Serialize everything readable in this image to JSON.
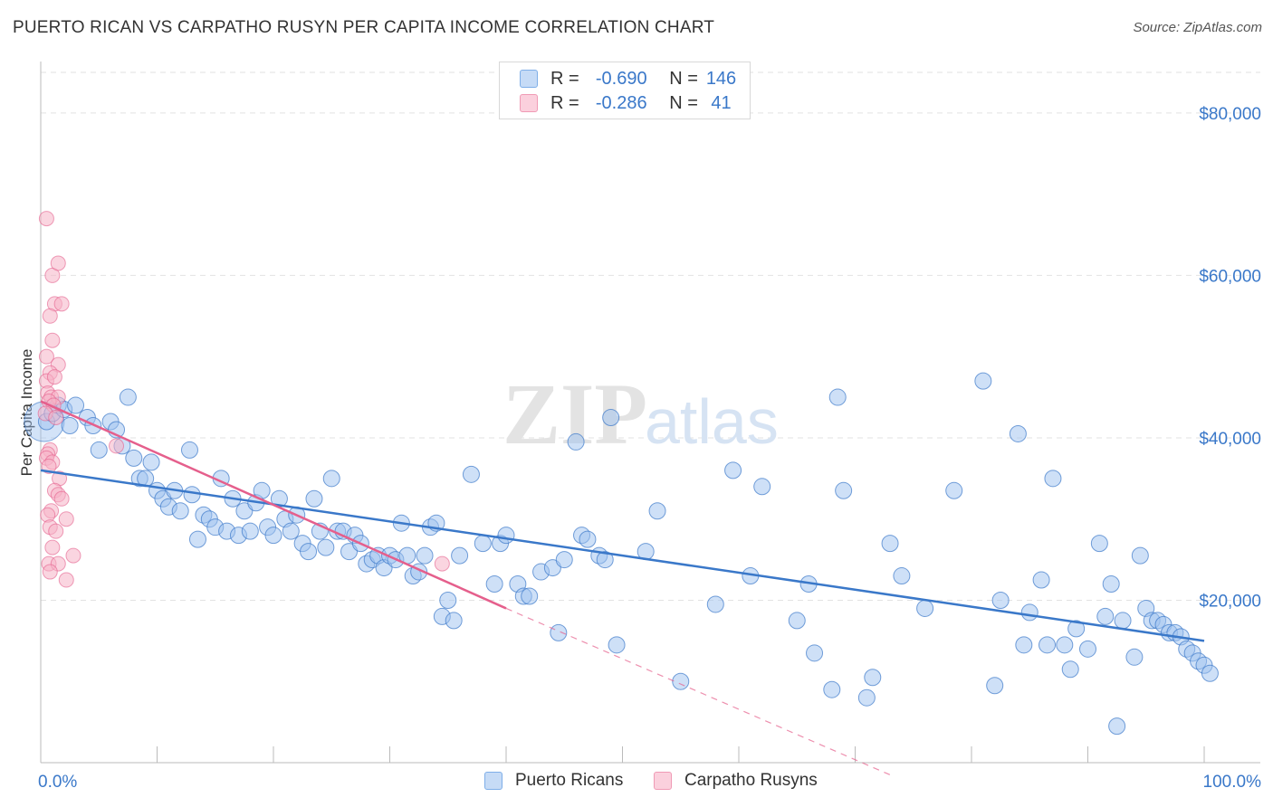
{
  "title": "PUERTO RICAN VS CARPATHO RUSYN PER CAPITA INCOME CORRELATION CHART",
  "source": "Source: ZipAtlas.com",
  "watermark": {
    "zip": "ZIP",
    "atlas": "atlas"
  },
  "legend": {
    "rows": [
      {
        "r_label": "R =",
        "r_value": "-0.690",
        "n_label": "N =",
        "n_value": "146",
        "color": "#9ec1ef"
      },
      {
        "r_label": "R =",
        "r_value": "-0.286",
        "n_label": "N =",
        "n_value": "41",
        "color": "#f5b3c7"
      }
    ]
  },
  "bottom_legend": [
    {
      "label": "Puerto Ricans",
      "color": "#9ec1ef"
    },
    {
      "label": "Carpatho Rusyns",
      "color": "#f5b3c7"
    }
  ],
  "chart_data": {
    "type": "scatter",
    "title": "PUERTO RICAN VS CARPATHO RUSYN PER CAPITA INCOME CORRELATION CHART",
    "xlabel": "",
    "ylabel": "Per Capita Income",
    "xlim": [
      0,
      100
    ],
    "ylim": [
      0,
      85000
    ],
    "x_tick_labels": [
      "0.0%",
      "100.0%"
    ],
    "y_ticks": [
      20000,
      40000,
      60000,
      80000
    ],
    "y_tick_labels": [
      "$20,000",
      "$40,000",
      "$60,000",
      "$80,000"
    ],
    "grid": "horizontal dashed",
    "legend_position": "top-center",
    "series": [
      {
        "name": "Puerto Ricans",
        "color": "#3a78c9",
        "fill": "#9ec1ef",
        "r": -0.69,
        "n": 146,
        "trend": {
          "x": [
            0,
            100
          ],
          "y": [
            36000,
            15000
          ]
        },
        "points": [
          [
            0.5,
            42000
          ],
          [
            1,
            43000
          ],
          [
            1.5,
            44000
          ],
          [
            2,
            43500
          ],
          [
            2.5,
            41500
          ],
          [
            3,
            44000
          ],
          [
            4,
            42500
          ],
          [
            4.5,
            41500
          ],
          [
            5,
            38500
          ],
          [
            6,
            42000
          ],
          [
            6.5,
            41000
          ],
          [
            7,
            39000
          ],
          [
            7.5,
            45000
          ],
          [
            8,
            37500
          ],
          [
            8.5,
            35000
          ],
          [
            9,
            35000
          ],
          [
            9.5,
            37000
          ],
          [
            10,
            33500
          ],
          [
            10.5,
            32500
          ],
          [
            11,
            31500
          ],
          [
            11.5,
            33500
          ],
          [
            12,
            31000
          ],
          [
            12.8,
            38500
          ],
          [
            13,
            33000
          ],
          [
            13.5,
            27500
          ],
          [
            14,
            30500
          ],
          [
            14.5,
            30000
          ],
          [
            15,
            29000
          ],
          [
            15.5,
            35000
          ],
          [
            16,
            28500
          ],
          [
            16.5,
            32500
          ],
          [
            17,
            28000
          ],
          [
            17.5,
            31000
          ],
          [
            18,
            28500
          ],
          [
            18.5,
            32000
          ],
          [
            19,
            33500
          ],
          [
            19.5,
            29000
          ],
          [
            20,
            28000
          ],
          [
            20.5,
            32500
          ],
          [
            21,
            30000
          ],
          [
            21.5,
            28500
          ],
          [
            22,
            30500
          ],
          [
            22.5,
            27000
          ],
          [
            23,
            26000
          ],
          [
            23.5,
            32500
          ],
          [
            24,
            28500
          ],
          [
            24.5,
            26500
          ],
          [
            25,
            35000
          ],
          [
            25.5,
            28500
          ],
          [
            26,
            28500
          ],
          [
            26.5,
            26000
          ],
          [
            27,
            28000
          ],
          [
            27.5,
            27000
          ],
          [
            28,
            24500
          ],
          [
            28.5,
            25000
          ],
          [
            29,
            25500
          ],
          [
            29.5,
            24000
          ],
          [
            30,
            25500
          ],
          [
            30.5,
            25000
          ],
          [
            31,
            29500
          ],
          [
            31.5,
            25500
          ],
          [
            32,
            23000
          ],
          [
            32.5,
            23500
          ],
          [
            33,
            25500
          ],
          [
            33.5,
            29000
          ],
          [
            34,
            29500
          ],
          [
            34.5,
            18000
          ],
          [
            35,
            20000
          ],
          [
            35.5,
            17500
          ],
          [
            36,
            25500
          ],
          [
            37,
            35500
          ],
          [
            38,
            27000
          ],
          [
            39,
            22000
          ],
          [
            39.5,
            27000
          ],
          [
            40,
            28000
          ],
          [
            41,
            22000
          ],
          [
            41.5,
            20500
          ],
          [
            42,
            20500
          ],
          [
            43,
            23500
          ],
          [
            44,
            24000
          ],
          [
            44.5,
            16000
          ],
          [
            45,
            25000
          ],
          [
            46,
            39500
          ],
          [
            46.5,
            28000
          ],
          [
            47,
            27500
          ],
          [
            48,
            25500
          ],
          [
            48.5,
            25000
          ],
          [
            49,
            42500
          ],
          [
            49.5,
            14500
          ],
          [
            52,
            26000
          ],
          [
            53,
            31000
          ],
          [
            55,
            10000
          ],
          [
            58,
            19500
          ],
          [
            59.5,
            36000
          ],
          [
            61,
            23000
          ],
          [
            62,
            34000
          ],
          [
            65,
            17500
          ],
          [
            66,
            22000
          ],
          [
            66.5,
            13500
          ],
          [
            68,
            9000
          ],
          [
            68.5,
            45000
          ],
          [
            69,
            33500
          ],
          [
            71,
            8000
          ],
          [
            71.5,
            10500
          ],
          [
            73,
            27000
          ],
          [
            74,
            23000
          ],
          [
            76,
            19000
          ],
          [
            78.5,
            33500
          ],
          [
            81,
            47000
          ],
          [
            82,
            9500
          ],
          [
            82.5,
            20000
          ],
          [
            84,
            40500
          ],
          [
            84.5,
            14500
          ],
          [
            85,
            18500
          ],
          [
            86,
            22500
          ],
          [
            86.5,
            14500
          ],
          [
            87,
            35000
          ],
          [
            88,
            14500
          ],
          [
            88.5,
            11500
          ],
          [
            89,
            16500
          ],
          [
            90,
            14000
          ],
          [
            91,
            27000
          ],
          [
            91.5,
            18000
          ],
          [
            92,
            22000
          ],
          [
            92.5,
            4500
          ],
          [
            93,
            17500
          ],
          [
            94,
            13000
          ],
          [
            94.5,
            25500
          ],
          [
            95,
            19000
          ],
          [
            95.5,
            17500
          ],
          [
            96,
            17500
          ],
          [
            96.5,
            17000
          ],
          [
            97,
            16000
          ],
          [
            97.5,
            16000
          ],
          [
            98,
            15500
          ],
          [
            98.5,
            14000
          ],
          [
            99,
            13500
          ],
          [
            99.5,
            12500
          ],
          [
            100,
            12000
          ],
          [
            100.5,
            11000
          ]
        ]
      },
      {
        "name": "Carpatho Rusyns",
        "color": "#e55f8c",
        "fill": "#f5b3c7",
        "r": -0.286,
        "n": 41,
        "trend": {
          "x": [
            0,
            40
          ],
          "y": [
            44500,
            19000
          ]
        },
        "trend_extension": {
          "x": [
            40,
            73
          ],
          "y": [
            19000,
            -1500
          ]
        },
        "points": [
          [
            0.5,
            67000
          ],
          [
            1,
            60000
          ],
          [
            1.5,
            61500
          ],
          [
            1.2,
            56500
          ],
          [
            1.8,
            56500
          ],
          [
            0.8,
            55000
          ],
          [
            1,
            52000
          ],
          [
            0.5,
            50000
          ],
          [
            1.5,
            49000
          ],
          [
            0.8,
            48000
          ],
          [
            0.5,
            47000
          ],
          [
            1.2,
            47500
          ],
          [
            0.6,
            45500
          ],
          [
            0.9,
            45000
          ],
          [
            1.5,
            45000
          ],
          [
            0.7,
            44500
          ],
          [
            1.1,
            44000
          ],
          [
            0.4,
            43000
          ],
          [
            1.3,
            42500
          ],
          [
            0.8,
            38500
          ],
          [
            0.6,
            38000
          ],
          [
            0.5,
            37500
          ],
          [
            1,
            37000
          ],
          [
            0.7,
            36500
          ],
          [
            1.6,
            35000
          ],
          [
            1.2,
            33500
          ],
          [
            1.5,
            33000
          ],
          [
            1.8,
            32500
          ],
          [
            0.9,
            31000
          ],
          [
            0.6,
            30500
          ],
          [
            2.2,
            30000
          ],
          [
            0.8,
            29000
          ],
          [
            1.3,
            28500
          ],
          [
            1,
            26500
          ],
          [
            0.7,
            24500
          ],
          [
            1.5,
            24500
          ],
          [
            0.8,
            23500
          ],
          [
            2.8,
            25500
          ],
          [
            2.2,
            22500
          ],
          [
            6.5,
            39000
          ],
          [
            34.5,
            24500
          ]
        ]
      }
    ]
  }
}
